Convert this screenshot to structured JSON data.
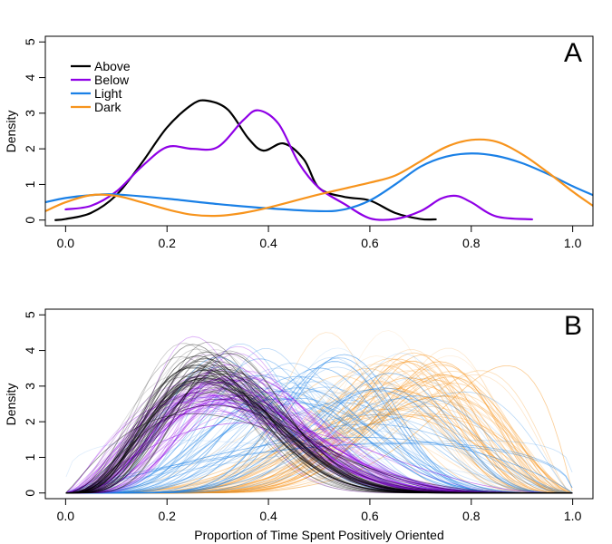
{
  "chart_data": [
    {
      "type": "line",
      "panel_label": "A",
      "xlabel": "",
      "ylabel": "Density",
      "xlim": [
        -0.04,
        1.04
      ],
      "ylim": [
        0,
        5
      ],
      "xticks": [
        "0.0",
        "0.2",
        "0.4",
        "0.6",
        "0.8",
        "1.0"
      ],
      "yticks": [
        "0",
        "1",
        "2",
        "3",
        "4",
        "5"
      ],
      "legend": {
        "placement": "top-left"
      },
      "series": [
        {
          "name": "Above",
          "color": "#000000",
          "x": [
            -0.02,
            0.0,
            0.05,
            0.1,
            0.15,
            0.2,
            0.25,
            0.28,
            0.32,
            0.36,
            0.39,
            0.43,
            0.47,
            0.5,
            0.55,
            0.6,
            0.65,
            0.7,
            0.73
          ],
          "y": [
            0.0,
            0.03,
            0.2,
            0.7,
            1.6,
            2.6,
            3.25,
            3.35,
            3.1,
            2.3,
            1.95,
            2.15,
            1.7,
            0.9,
            0.65,
            0.55,
            0.2,
            0.03,
            0.02
          ]
        },
        {
          "name": "Below",
          "color": "#8f00e6",
          "x": [
            0.0,
            0.05,
            0.1,
            0.15,
            0.2,
            0.25,
            0.3,
            0.35,
            0.38,
            0.42,
            0.46,
            0.5,
            0.55,
            0.6,
            0.65,
            0.7,
            0.74,
            0.77,
            0.8,
            0.85,
            0.92
          ],
          "y": [
            0.3,
            0.4,
            0.8,
            1.5,
            2.05,
            2.0,
            2.05,
            2.8,
            3.08,
            2.7,
            1.6,
            0.9,
            0.45,
            0.05,
            0.03,
            0.25,
            0.6,
            0.68,
            0.5,
            0.1,
            0.02
          ]
        },
        {
          "name": "Light",
          "color": "#1a80e6",
          "x": [
            -0.04,
            0.0,
            0.05,
            0.1,
            0.2,
            0.3,
            0.4,
            0.5,
            0.55,
            0.6,
            0.65,
            0.7,
            0.75,
            0.8,
            0.85,
            0.9,
            0.95,
            1.0,
            1.04
          ],
          "y": [
            0.5,
            0.62,
            0.7,
            0.72,
            0.6,
            0.45,
            0.33,
            0.25,
            0.3,
            0.55,
            1.0,
            1.5,
            1.78,
            1.87,
            1.8,
            1.6,
            1.3,
            0.95,
            0.7
          ]
        },
        {
          "name": "Dark",
          "color": "#f7941d",
          "x": [
            -0.04,
            0.0,
            0.05,
            0.1,
            0.15,
            0.2,
            0.25,
            0.3,
            0.35,
            0.4,
            0.5,
            0.6,
            0.65,
            0.7,
            0.75,
            0.8,
            0.85,
            0.9,
            0.95,
            1.0,
            1.04
          ],
          "y": [
            0.25,
            0.5,
            0.7,
            0.68,
            0.5,
            0.3,
            0.15,
            0.12,
            0.2,
            0.35,
            0.72,
            1.05,
            1.25,
            1.65,
            2.05,
            2.25,
            2.2,
            1.85,
            1.35,
            0.8,
            0.4
          ]
        }
      ]
    },
    {
      "type": "line",
      "panel_label": "B",
      "xlabel": "Proportion of Time Spent Positively Oriented",
      "ylabel": "Density",
      "xlim": [
        -0.04,
        1.04
      ],
      "ylim": [
        0,
        5
      ],
      "xticks": [
        "0.0",
        "0.2",
        "0.4",
        "0.6",
        "0.8",
        "1.0"
      ],
      "yticks": [
        "0",
        "1",
        "2",
        "3",
        "4",
        "5"
      ],
      "posterior_draws": [
        {
          "group": "Above",
          "color": "#000000",
          "count": 60,
          "mode_mean": 0.28,
          "mode_sd": 0.025,
          "peak_mean": 3.4,
          "peak_sd": 0.45
        },
        {
          "group": "Below",
          "color": "#8f00e6",
          "count": 60,
          "mode_mean": 0.3,
          "mode_sd": 0.04,
          "peak_mean": 3.0,
          "peak_sd": 0.5
        },
        {
          "group": "Light",
          "color": "#1a80e6",
          "count": 60,
          "mode_mean": 0.5,
          "mode_sd": 0.12,
          "peak_mean": 2.9,
          "peak_sd": 0.7
        },
        {
          "group": "Dark",
          "color": "#f7941d",
          "count": 60,
          "mode_mean": 0.68,
          "mode_sd": 0.08,
          "peak_mean": 3.1,
          "peak_sd": 0.6
        }
      ]
    }
  ]
}
